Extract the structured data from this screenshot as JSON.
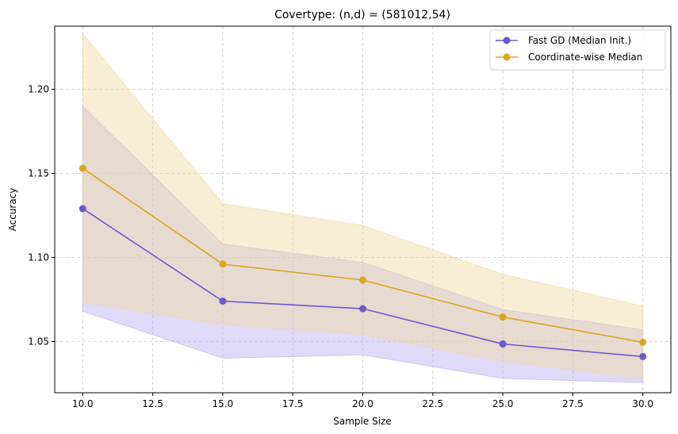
{
  "chart_data": {
    "type": "line",
    "title": "Covertype: (n,d) = (581012,54)",
    "xlabel": "Sample Size",
    "ylabel": "Accuracy",
    "xlim": [
      9.0,
      31.0
    ],
    "ylim": [
      1.0195,
      1.2375
    ],
    "grid": true,
    "legend_position": "top-right",
    "xticks": [
      10.0,
      12.5,
      15.0,
      17.5,
      20.0,
      22.5,
      25.0,
      27.5,
      30.0
    ],
    "xtick_labels": [
      "10.0",
      "12.5",
      "15.0",
      "17.5",
      "20.0",
      "22.5",
      "25.0",
      "27.5",
      "30.0"
    ],
    "yticks": [
      1.05,
      1.1,
      1.15,
      1.2
    ],
    "ytick_labels": [
      "1.05",
      "1.10",
      "1.15",
      "1.20"
    ],
    "x": [
      10,
      15,
      20,
      25,
      30
    ],
    "series": [
      {
        "name": "Fast GD (Median Init.)",
        "color": "#6a5acd",
        "band_color": "#b7aef0",
        "values": [
          1.129,
          1.074,
          1.0695,
          1.0485,
          1.041
        ],
        "lower": [
          1.068,
          1.04,
          1.042,
          1.028,
          1.0255
        ],
        "upper": [
          1.19,
          1.108,
          1.097,
          1.069,
          1.057
        ]
      },
      {
        "name": "Coordinate-wise Median",
        "color": "#daa520",
        "band_color": "#efd9a2",
        "values": [
          1.153,
          1.096,
          1.0865,
          1.0645,
          1.0495
        ],
        "lower": [
          1.073,
          1.06,
          1.054,
          1.038,
          1.028
        ],
        "upper": [
          1.233,
          1.132,
          1.119,
          1.09,
          1.071
        ]
      }
    ]
  }
}
